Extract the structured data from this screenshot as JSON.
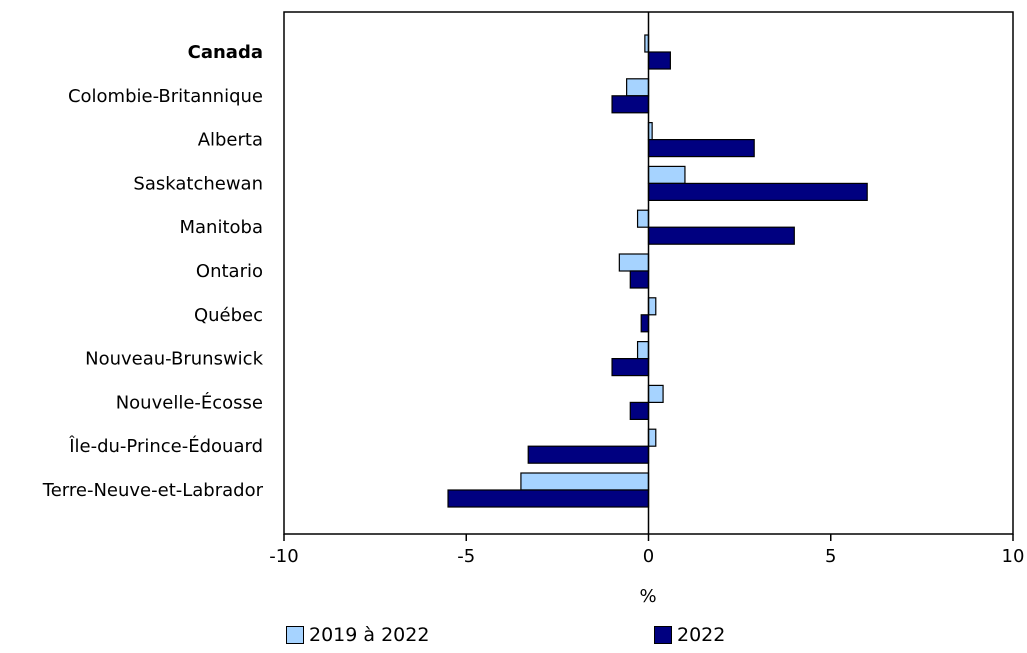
{
  "chart_data": {
    "type": "bar",
    "orientation": "horizontal",
    "categories": [
      "Canada",
      "Colombie-Britannique",
      "Alberta",
      "Saskatchewan",
      "Manitoba",
      "Ontario",
      "Québec",
      "Nouveau-Brunswick",
      "Nouvelle-Écosse",
      "Île-du-Prince-Édouard",
      "Terre-Neuve-et-Labrador"
    ],
    "bold_categories": [
      "Canada"
    ],
    "series": [
      {
        "name": "2019 à 2022",
        "color": "#a6d3ff",
        "values": [
          -0.1,
          -0.6,
          0.1,
          1.0,
          -0.3,
          -0.8,
          0.2,
          -0.3,
          0.4,
          0.2,
          -3.5
        ]
      },
      {
        "name": "2022",
        "color": "#000080",
        "values": [
          0.6,
          -1.0,
          2.9,
          6.0,
          4.0,
          -0.5,
          -0.2,
          -1.0,
          -0.5,
          -3.3,
          -5.5
        ]
      }
    ],
    "xlim": [
      -10,
      10
    ],
    "xticks": [
      -10,
      -5,
      0,
      5,
      10
    ],
    "xtick_labels": [
      "-10",
      "-5",
      "0",
      "5",
      "10"
    ],
    "xlabel": "%",
    "ylabel": "",
    "title": "",
    "grid": false,
    "legend_position": "bottom"
  }
}
